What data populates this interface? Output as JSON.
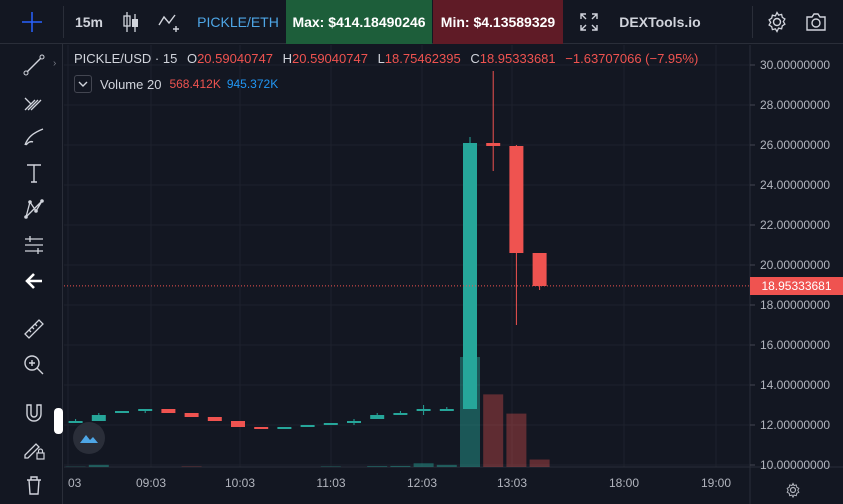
{
  "toolbar": {
    "interval": "15m",
    "pair": "PICKLE/ETH",
    "max_label": "Max: $414.18490246",
    "min_label": "Min: $4.13589329",
    "brand": "DEXTools.io"
  },
  "legend": {
    "symbol": "PICKLE/USD · 15",
    "open_label": "O",
    "open": "20.59040747",
    "high_label": "H",
    "high": "20.59040747",
    "low_label": "L",
    "low": "18.75462395",
    "close_label": "C",
    "close": "18.95333681",
    "change": "−1.63707066 (−7.95%)"
  },
  "volume": {
    "label": "Volume 20",
    "value_a": "568.412K",
    "value_b": "945.372K"
  },
  "price_axis": {
    "ticks": [
      30,
      28,
      26,
      24,
      22,
      20,
      18,
      16,
      14,
      12,
      10
    ],
    "tick_labels": [
      "30.00000000",
      "28.00000000",
      "26.00000000",
      "24.00000000",
      "22.00000000",
      "20.00000000",
      "18.00000000",
      "16.00000000",
      "14.00000000",
      "12.00000000",
      "10.00000000"
    ],
    "last_price": 18.95333681,
    "last_price_label": "18.95333681"
  },
  "time_axis": {
    "labels": [
      "03",
      "09:03",
      "10:03",
      "11:03",
      "12:03",
      "13:03",
      "18:00",
      "19:00"
    ]
  },
  "colors": {
    "up": "#26a69a",
    "down": "#ef5350",
    "background": "#131722",
    "grid": "#1e222d"
  },
  "chart_data": {
    "type": "candlestick",
    "ylim": [
      9.9,
      31
    ],
    "candles": [
      {
        "t": 0.5,
        "o": 12.2,
        "h": 12.3,
        "l": 12.1,
        "c": 12.2,
        "dir": "up"
      },
      {
        "t": 1.5,
        "o": 12.2,
        "h": 12.6,
        "l": 12.2,
        "c": 12.5,
        "dir": "up"
      },
      {
        "t": 2.5,
        "o": 12.6,
        "h": 12.7,
        "l": 12.6,
        "c": 12.7,
        "dir": "up"
      },
      {
        "t": 3.5,
        "o": 12.7,
        "h": 12.8,
        "l": 12.6,
        "c": 12.8,
        "dir": "up"
      },
      {
        "t": 4.5,
        "o": 12.8,
        "h": 12.8,
        "l": 12.6,
        "c": 12.6,
        "dir": "down"
      },
      {
        "t": 5.5,
        "o": 12.6,
        "h": 12.6,
        "l": 12.4,
        "c": 12.4,
        "dir": "down"
      },
      {
        "t": 6.5,
        "o": 12.4,
        "h": 12.4,
        "l": 12.2,
        "c": 12.2,
        "dir": "down"
      },
      {
        "t": 7.5,
        "o": 12.2,
        "h": 12.2,
        "l": 11.9,
        "c": 11.9,
        "dir": "down"
      },
      {
        "t": 8.5,
        "o": 11.9,
        "h": 11.9,
        "l": 11.8,
        "c": 11.8,
        "dir": "down"
      },
      {
        "t": 9.5,
        "o": 11.8,
        "h": 11.9,
        "l": 11.8,
        "c": 11.9,
        "dir": "up"
      },
      {
        "t": 10.5,
        "o": 11.9,
        "h": 12.0,
        "l": 11.9,
        "c": 12.0,
        "dir": "up"
      },
      {
        "t": 11.5,
        "o": 12.0,
        "h": 12.1,
        "l": 12.0,
        "c": 12.1,
        "dir": "up"
      },
      {
        "t": 12.5,
        "o": 12.1,
        "h": 12.3,
        "l": 12.0,
        "c": 12.2,
        "dir": "up"
      },
      {
        "t": 13.5,
        "o": 12.3,
        "h": 12.6,
        "l": 12.3,
        "c": 12.5,
        "dir": "up"
      },
      {
        "t": 14.5,
        "o": 12.5,
        "h": 12.7,
        "l": 12.5,
        "c": 12.6,
        "dir": "up"
      },
      {
        "t": 15.5,
        "o": 12.7,
        "h": 13.0,
        "l": 12.5,
        "c": 12.8,
        "dir": "up"
      },
      {
        "t": 16.5,
        "o": 12.7,
        "h": 12.9,
        "l": 12.7,
        "c": 12.8,
        "dir": "up"
      },
      {
        "t": 17.5,
        "o": 12.8,
        "h": 26.4,
        "l": 12.8,
        "c": 26.1,
        "dir": "up"
      },
      {
        "t": 18.5,
        "o": 26.1,
        "h": 29.7,
        "l": 24.7,
        "c": 25.95,
        "dir": "down"
      },
      {
        "t": 19.5,
        "o": 25.95,
        "h": 26.0,
        "l": 17.0,
        "c": 20.6,
        "dir": "down"
      },
      {
        "t": 20.5,
        "o": 20.6,
        "h": 20.6,
        "l": 18.75,
        "c": 18.95,
        "dir": "down"
      }
    ],
    "volume": [
      {
        "t": 0.5,
        "v": 0.03,
        "dir": "up"
      },
      {
        "t": 1.5,
        "v": 0.2,
        "dir": "up"
      },
      {
        "t": 5.5,
        "v": 0.05,
        "dir": "down"
      },
      {
        "t": 11.5,
        "v": 0.05,
        "dir": "up"
      },
      {
        "t": 13.5,
        "v": 0.08,
        "dir": "up"
      },
      {
        "t": 14.5,
        "v": 0.1,
        "dir": "up"
      },
      {
        "t": 15.5,
        "v": 0.35,
        "dir": "up"
      },
      {
        "t": 16.5,
        "v": 0.2,
        "dir": "up"
      },
      {
        "t": 17.5,
        "v": 10.3,
        "dir": "up"
      },
      {
        "t": 18.5,
        "v": 6.8,
        "dir": "down"
      },
      {
        "t": 19.5,
        "v": 5.0,
        "dir": "down"
      },
      {
        "t": 20.5,
        "v": 0.7,
        "dir": "down"
      }
    ]
  }
}
